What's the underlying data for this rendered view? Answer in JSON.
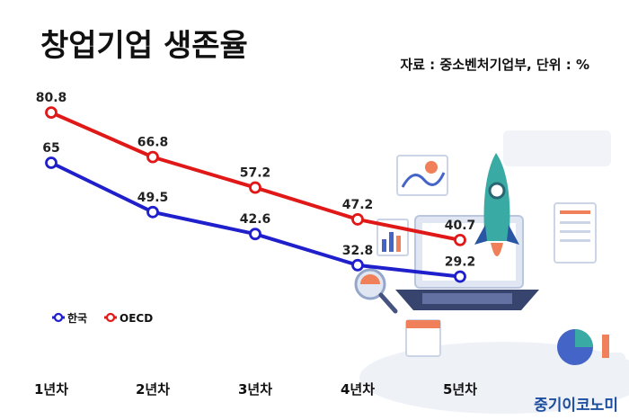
{
  "title": "창업기업 생존율",
  "source": "자료 : 중소벤처기업부, 단위 : %",
  "brand": "중기이코노미",
  "chart_data": {
    "type": "line",
    "categories": [
      "1년차",
      "2년차",
      "3년차",
      "4년차",
      "5년차"
    ],
    "series": [
      {
        "name": "한국",
        "values": [
          65,
          49.5,
          42.6,
          32.8,
          29.2
        ],
        "color": "#1f1fcc"
      },
      {
        "name": "OECD",
        "values": [
          80.8,
          66.8,
          57.2,
          47.2,
          40.7
        ],
        "color": "#e01818"
      }
    ],
    "legend_position": "left",
    "grid": false,
    "ylim": [
      0,
      90
    ]
  }
}
